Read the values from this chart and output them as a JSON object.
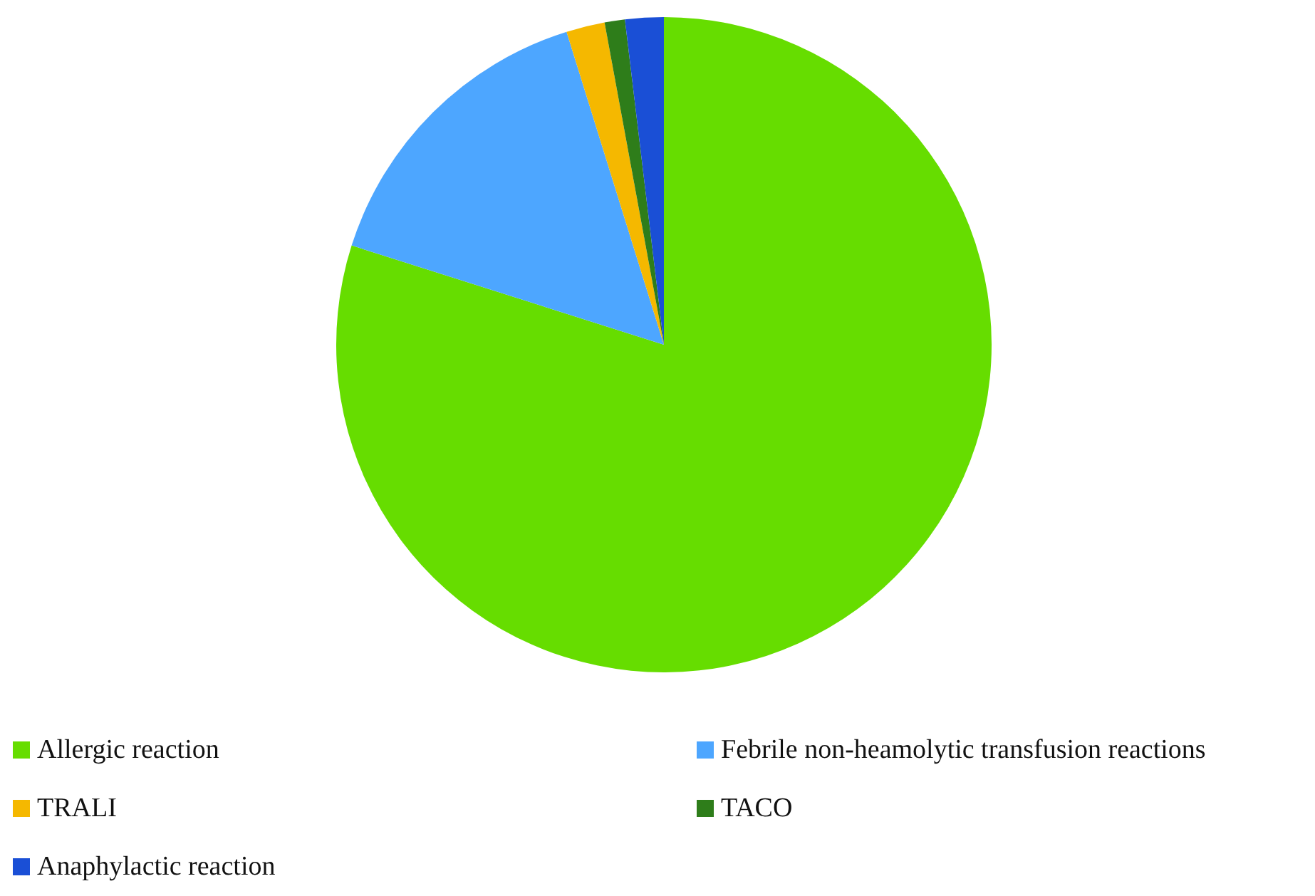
{
  "chart_data": {
    "type": "pie",
    "categories": [
      "Allergic reaction",
      "Febrile non-heamolytic transfusion reactions",
      "TRALI",
      "TACO",
      "Anaphylactic reaction"
    ],
    "values": [
      79.9,
      15.3,
      1.9,
      1.0,
      1.9
    ],
    "colors": [
      "#66dd00",
      "#4da6ff",
      "#f5b800",
      "#2e7d1a",
      "#1a4fd6"
    ],
    "legend": "bottom"
  }
}
